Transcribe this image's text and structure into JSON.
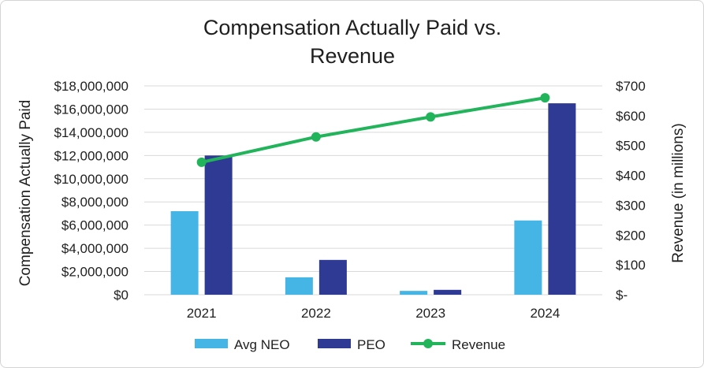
{
  "chart_data": {
    "type": "bar",
    "title_lines": [
      "Compensation Actually Paid vs.",
      "Revenue"
    ],
    "ylabel_left": "Compensation Actually Paid",
    "ylabel_right": "Revenue (in millions)",
    "categories": [
      "2021",
      "2022",
      "2023",
      "2024"
    ],
    "ylim_left": [
      0,
      18000000
    ],
    "ylim_right": [
      0,
      700
    ],
    "yticks_left": [
      "$18,000,000",
      "$16,000,000",
      "$14,000,000",
      "$12,000,000",
      "$10,000,000",
      "$8,000,000",
      "$6,000,000",
      "$4,000,000",
      "$2,000,000",
      "$0"
    ],
    "yticks_right": [
      "$700",
      "$600",
      "$500",
      "$400",
      "$300",
      "$200",
      "$100",
      "$-"
    ],
    "grid": true,
    "legend_position": "bottom",
    "series": [
      {
        "name": "Avg NEO",
        "kind": "bar",
        "axis": "left",
        "color": "#45b5e6",
        "values": [
          7200000,
          1500000,
          330000,
          6400000
        ]
      },
      {
        "name": "PEO",
        "kind": "bar",
        "axis": "left",
        "color": "#2e3a94",
        "values": [
          12000000,
          3000000,
          420000,
          16500000
        ]
      },
      {
        "name": "Revenue",
        "kind": "line",
        "axis": "right",
        "color": "#22b45a",
        "values": [
          444,
          529,
          596,
          660
        ]
      }
    ]
  }
}
